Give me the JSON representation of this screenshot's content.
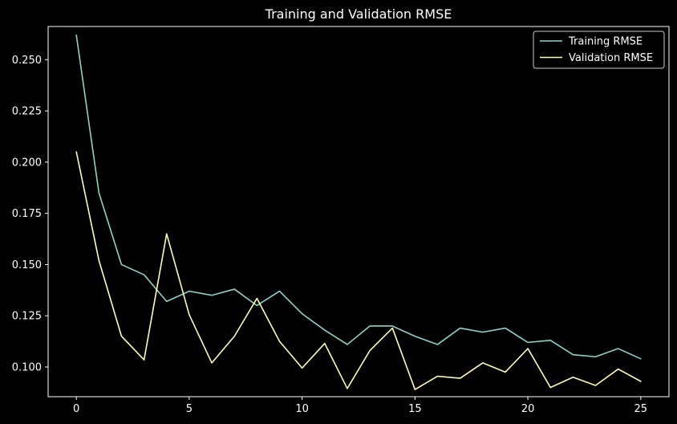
{
  "chart_data": {
    "type": "line",
    "title": "Training and Validation RMSE",
    "xlabel": "",
    "ylabel": "",
    "xlim": [
      -1.25,
      26.25
    ],
    "ylim": [
      0.0855,
      0.2662
    ],
    "grid": false,
    "legend_position": "top-right",
    "x": [
      0,
      1,
      2,
      3,
      4,
      5,
      6,
      7,
      8,
      9,
      10,
      11,
      12,
      13,
      14,
      15,
      16,
      17,
      18,
      19,
      20,
      21,
      22,
      23,
      24,
      25
    ],
    "x_ticks": [
      0,
      5,
      10,
      15,
      20,
      25
    ],
    "y_ticks": [
      0.1,
      0.125,
      0.15,
      0.175,
      0.2,
      0.225,
      0.25
    ],
    "x_tick_labels": [
      "0",
      "5",
      "10",
      "15",
      "20",
      "25"
    ],
    "y_tick_labels": [
      "0.100",
      "0.125",
      "0.150",
      "0.175",
      "0.200",
      "0.225",
      "0.250"
    ],
    "series": [
      {
        "name": "Training RMSE",
        "color": "#8dd3c7",
        "values": [
          0.262,
          0.185,
          0.15,
          0.145,
          0.132,
          0.137,
          0.135,
          0.138,
          0.13,
          0.137,
          0.126,
          0.118,
          0.111,
          0.12,
          0.12,
          0.115,
          0.111,
          0.119,
          0.117,
          0.119,
          0.112,
          0.113,
          0.106,
          0.105,
          0.109,
          0.104
        ]
      },
      {
        "name": "Validation RMSE",
        "color": "#ffffb3",
        "values": [
          0.205,
          0.152,
          0.115,
          0.1035,
          0.165,
          0.1255,
          0.102,
          0.115,
          0.1335,
          0.1125,
          0.0995,
          0.1115,
          0.0895,
          0.108,
          0.119,
          0.089,
          0.0955,
          0.0945,
          0.102,
          0.0975,
          0.109,
          0.09,
          0.095,
          0.091,
          0.099,
          0.093
        ]
      }
    ]
  }
}
